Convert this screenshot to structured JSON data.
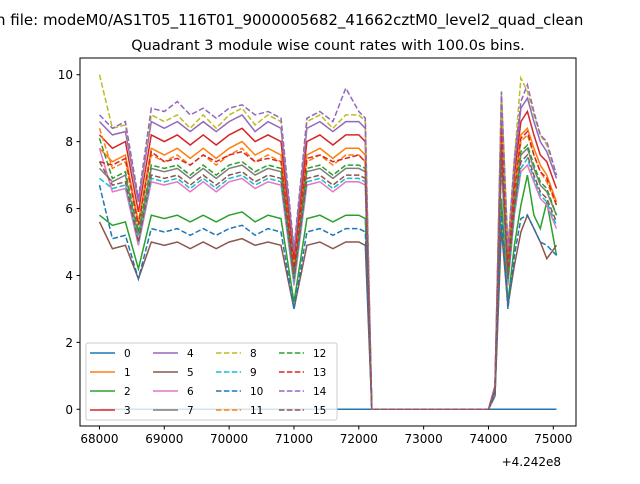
{
  "chart_data": {
    "type": "line",
    "suptitle": "n file: modeM0/AS1T05_116T01_9000005682_41662cztM0_level2_quad_clean",
    "title": "Quadrant 3 module wise count rates with 100.0s bins.",
    "xlabel": "",
    "ylabel": "",
    "x_offset_label": "+4.242e8",
    "xlim": [
      67700,
      75350
    ],
    "ylim": [
      -0.5,
      10.5
    ],
    "xticks": [
      68000,
      69000,
      70000,
      71000,
      72000,
      73000,
      74000,
      75000
    ],
    "xtick_labels": [
      "68000",
      "69000",
      "70000",
      "71000",
      "72000",
      "73000",
      "74000",
      "75000"
    ],
    "yticks": [
      0,
      2,
      4,
      6,
      8,
      10
    ],
    "ytick_labels": [
      "0",
      "2",
      "4",
      "6",
      "8",
      "10"
    ],
    "grid": false,
    "legend_placement": "lower-left",
    "x": [
      68000,
      68200,
      68400,
      68600,
      68800,
      69000,
      69200,
      69400,
      69600,
      69800,
      70000,
      70200,
      70400,
      70600,
      70800,
      71000,
      71200,
      71400,
      71600,
      71800,
      72000,
      72100,
      72200,
      74000,
      74100,
      74200,
      74300,
      74400,
      74500,
      74600,
      74700,
      74800,
      74900,
      75050
    ],
    "series": [
      {
        "name": "0",
        "color": "#1f77b4",
        "dash": false,
        "values": [
          0,
          0,
          0,
          0,
          0,
          0,
          0,
          0,
          0,
          0,
          0,
          0,
          0,
          0,
          0,
          0,
          0,
          0,
          0,
          0,
          0,
          0,
          0,
          0,
          0,
          0,
          0,
          0,
          0,
          0,
          0,
          0,
          0,
          0
        ]
      },
      {
        "name": "1",
        "color": "#ff7f0e",
        "dash": false,
        "values": [
          7.8,
          7.4,
          7.6,
          5.6,
          7.8,
          7.6,
          7.8,
          7.5,
          7.8,
          7.5,
          7.8,
          8.0,
          7.6,
          7.8,
          7.6,
          4.3,
          7.6,
          7.8,
          7.5,
          7.8,
          7.8,
          7.6,
          0,
          0,
          0.6,
          8.4,
          4.3,
          6.6,
          8.2,
          8.4,
          7.8,
          7.3,
          7.0,
          6.2
        ]
      },
      {
        "name": "2",
        "color": "#2ca02c",
        "dash": false,
        "values": [
          5.8,
          5.5,
          5.6,
          4.2,
          5.8,
          5.7,
          5.8,
          5.6,
          5.8,
          5.6,
          5.8,
          5.9,
          5.6,
          5.8,
          5.7,
          3.2,
          5.7,
          5.8,
          5.6,
          5.8,
          5.8,
          5.7,
          0,
          0,
          0.5,
          6.3,
          3.2,
          4.9,
          6.1,
          7.0,
          5.8,
          5.4,
          6.2,
          4.6
        ]
      },
      {
        "name": "3",
        "color": "#d62728",
        "dash": false,
        "values": [
          8.2,
          7.8,
          8.0,
          5.9,
          8.2,
          8.0,
          8.2,
          7.9,
          8.2,
          7.9,
          8.2,
          8.4,
          8.0,
          8.2,
          8.0,
          4.5,
          8.0,
          8.2,
          7.9,
          8.2,
          8.2,
          8.0,
          0,
          0,
          0.7,
          8.9,
          4.5,
          7.0,
          8.6,
          8.9,
          8.2,
          7.6,
          7.4,
          6.6
        ]
      },
      {
        "name": "4",
        "color": "#9467bd",
        "dash": false,
        "values": [
          8.6,
          8.2,
          8.3,
          6.2,
          8.6,
          8.4,
          8.6,
          8.3,
          8.6,
          8.3,
          8.6,
          8.8,
          8.3,
          8.6,
          8.4,
          4.7,
          8.4,
          8.6,
          8.3,
          8.6,
          8.6,
          8.4,
          0,
          0,
          0.7,
          9.3,
          4.7,
          7.3,
          9.0,
          9.3,
          8.6,
          8.0,
          7.7,
          6.9
        ]
      },
      {
        "name": "5",
        "color": "#8c564b",
        "dash": false,
        "values": [
          5.6,
          4.8,
          4.9,
          3.9,
          5.0,
          4.9,
          5.0,
          4.8,
          5.0,
          4.8,
          5.0,
          5.1,
          4.9,
          5.0,
          4.9,
          3.0,
          4.9,
          5.0,
          4.8,
          5.0,
          5.0,
          4.9,
          0,
          0,
          0.4,
          5.4,
          3.1,
          4.3,
          5.3,
          5.8,
          5.4,
          5.0,
          4.5,
          4.9
        ]
      },
      {
        "name": "6",
        "color": "#e377c2",
        "dash": false,
        "values": [
          7.8,
          6.5,
          6.6,
          4.9,
          6.8,
          6.7,
          6.8,
          6.5,
          6.8,
          6.5,
          6.8,
          6.9,
          6.6,
          6.8,
          6.7,
          3.7,
          6.7,
          6.8,
          6.5,
          6.8,
          6.8,
          6.7,
          0,
          0,
          0.5,
          7.3,
          3.7,
          5.8,
          7.1,
          7.3,
          6.8,
          6.3,
          6.1,
          5.4
        ]
      },
      {
        "name": "7",
        "color": "#7f7f7f",
        "dash": false,
        "values": [
          7.2,
          6.8,
          7.0,
          5.2,
          7.2,
          7.1,
          7.2,
          6.9,
          7.2,
          6.9,
          7.2,
          7.3,
          7.0,
          7.2,
          7.1,
          4.0,
          7.1,
          7.2,
          6.9,
          7.2,
          7.2,
          7.1,
          0,
          0,
          0.6,
          7.8,
          4.0,
          6.1,
          7.6,
          7.8,
          7.2,
          6.7,
          6.5,
          5.8
        ]
      },
      {
        "name": "8",
        "color": "#bcbd22",
        "dash": true,
        "values": [
          10.0,
          8.4,
          8.5,
          6.3,
          8.8,
          8.6,
          8.8,
          8.4,
          8.8,
          8.4,
          8.8,
          9.0,
          8.5,
          8.8,
          8.6,
          4.8,
          8.6,
          8.8,
          8.4,
          8.8,
          8.8,
          8.6,
          0,
          0,
          0.7,
          9.5,
          4.8,
          7.5,
          9.9,
          9.5,
          8.8,
          8.2,
          7.9,
          7.0
        ]
      },
      {
        "name": "9",
        "color": "#17becf",
        "dash": true,
        "values": [
          6.9,
          6.6,
          6.7,
          5.0,
          6.9,
          6.8,
          6.9,
          6.6,
          6.9,
          6.6,
          6.9,
          7.0,
          6.7,
          6.9,
          6.8,
          3.8,
          6.8,
          6.9,
          6.6,
          6.9,
          6.9,
          6.8,
          0,
          0,
          0.6,
          7.5,
          3.8,
          5.9,
          7.2,
          7.5,
          6.9,
          6.4,
          6.2,
          5.5
        ]
      },
      {
        "name": "10",
        "color": "#1f77b4",
        "dash": true,
        "values": [
          6.7,
          5.1,
          5.2,
          3.9,
          5.4,
          5.3,
          5.4,
          5.2,
          5.4,
          5.2,
          5.4,
          5.5,
          5.2,
          5.4,
          5.3,
          3.0,
          5.3,
          5.4,
          5.2,
          5.4,
          5.4,
          5.3,
          0,
          0,
          0.4,
          5.8,
          3.0,
          4.6,
          5.7,
          5.8,
          5.4,
          5.0,
          4.9,
          4.6
        ]
      },
      {
        "name": "11",
        "color": "#ff7f0e",
        "dash": true,
        "values": [
          8.4,
          7.2,
          7.4,
          5.5,
          7.6,
          7.4,
          7.6,
          7.3,
          7.6,
          7.3,
          7.6,
          7.8,
          7.4,
          7.6,
          7.4,
          4.2,
          7.4,
          7.6,
          7.3,
          7.6,
          7.6,
          7.4,
          0,
          0,
          0.6,
          8.2,
          4.2,
          6.5,
          8.0,
          8.2,
          7.6,
          7.1,
          6.8,
          6.1
        ]
      },
      {
        "name": "12",
        "color": "#2ca02c",
        "dash": true,
        "values": [
          8.1,
          6.9,
          7.1,
          5.3,
          7.3,
          7.2,
          7.3,
          7.0,
          7.3,
          7.0,
          7.3,
          7.4,
          7.1,
          7.3,
          7.2,
          4.0,
          7.2,
          7.3,
          7.0,
          7.3,
          7.3,
          7.2,
          0,
          0,
          0.6,
          7.9,
          4.0,
          6.2,
          7.7,
          7.9,
          7.3,
          6.8,
          6.6,
          5.8
        ]
      },
      {
        "name": "13",
        "color": "#d62728",
        "dash": true,
        "values": [
          7.4,
          7.3,
          7.5,
          5.5,
          7.7,
          7.4,
          7.5,
          7.3,
          7.6,
          7.4,
          7.6,
          7.7,
          7.4,
          7.5,
          7.4,
          4.2,
          7.5,
          7.6,
          7.4,
          7.5,
          7.6,
          7.4,
          0,
          0,
          0.6,
          8.3,
          4.2,
          6.5,
          8.1,
          8.3,
          7.6,
          7.1,
          6.9,
          6.1
        ]
      },
      {
        "name": "14",
        "color": "#9467bd",
        "dash": true,
        "values": [
          8.8,
          8.4,
          8.6,
          6.3,
          9.0,
          8.9,
          9.2,
          8.8,
          9.0,
          8.7,
          9.0,
          9.1,
          8.8,
          8.9,
          8.7,
          4.8,
          8.7,
          8.9,
          8.6,
          9.6,
          8.9,
          8.7,
          0,
          0,
          0.7,
          9.5,
          4.8,
          7.5,
          9.2,
          9.7,
          8.9,
          8.2,
          8.0,
          7.0
        ]
      },
      {
        "name": "15",
        "color": "#8c564b",
        "dash": true,
        "values": [
          7.4,
          6.7,
          6.8,
          5.0,
          7.0,
          6.9,
          7.0,
          6.7,
          7.0,
          6.7,
          7.0,
          7.1,
          6.8,
          7.0,
          6.9,
          3.9,
          6.9,
          7.0,
          6.7,
          7.0,
          7.0,
          6.9,
          0,
          0,
          0.6,
          7.6,
          3.9,
          6.0,
          7.4,
          7.6,
          7.0,
          6.5,
          6.3,
          5.6
        ]
      }
    ]
  }
}
